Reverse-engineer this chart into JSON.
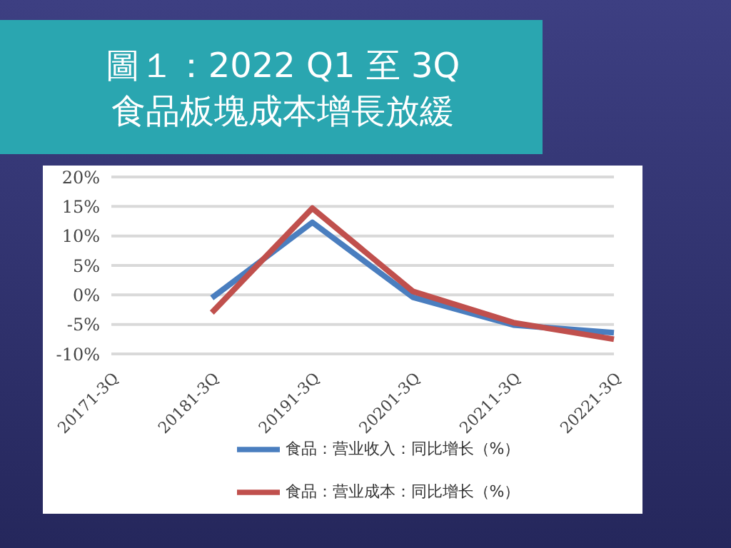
{
  "chart_data": {
    "type": "line",
    "title": "圖１：2022 Q1 至 3Q\n食品板塊成本增長放緩",
    "categories": [
      "20171-3Q",
      "20181-3Q",
      "20191-3Q",
      "20201-3Q",
      "20211-3Q",
      "20221-3Q"
    ],
    "series": [
      {
        "name": "食品：营业收入：同比增长（%）",
        "color": "#4a7ebf",
        "values": [
          null,
          -0.5,
          12.3,
          -0.4,
          -5.1,
          -6.4
        ]
      },
      {
        "name": "食品：营业成本：同比增长（%）",
        "color": "#c0504d",
        "values": [
          null,
          -3.0,
          14.7,
          0.6,
          -4.7,
          -7.5
        ]
      }
    ],
    "ylim": [
      -10,
      20
    ],
    "yticks": [
      {
        "value": -10,
        "label": "-10%"
      },
      {
        "value": -5,
        "label": "-5%"
      },
      {
        "value": 0,
        "label": "0%"
      },
      {
        "value": 5,
        "label": "5%"
      },
      {
        "value": 10,
        "label": "10%"
      },
      {
        "value": 15,
        "label": "15%"
      },
      {
        "value": 20,
        "label": "20%"
      }
    ],
    "grid": "y",
    "legend": "bottom",
    "marker": "none",
    "line_style": "solid"
  }
}
